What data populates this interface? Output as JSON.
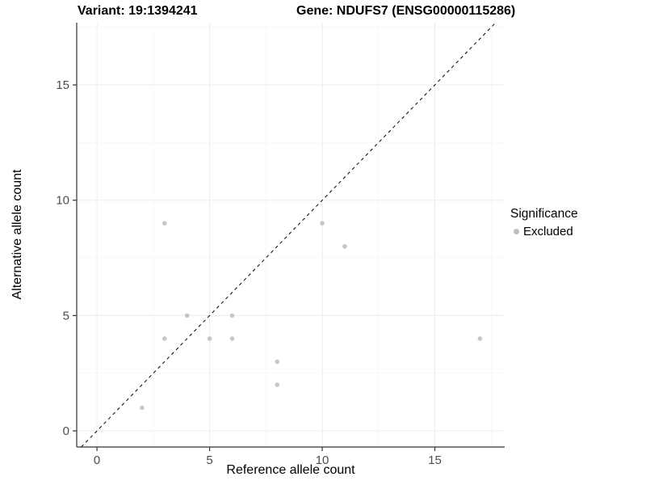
{
  "chart_data": {
    "type": "scatter",
    "title_left": "Variant: 19:1394241",
    "title_right": "Gene: NDUFS7 (ENSG00000115286)",
    "xlabel": "Reference allele count",
    "ylabel": "Alternative allele count",
    "xlim": [
      -0.9,
      18.1
    ],
    "ylim": [
      -0.7,
      17.7
    ],
    "xticks": [
      0,
      5,
      10,
      15
    ],
    "yticks": [
      0,
      5,
      10,
      15
    ],
    "grid": true,
    "identity_line": {
      "style": "dashed",
      "color": "#000000"
    },
    "series": [
      {
        "name": "Excluded",
        "color": "#bdbdbd",
        "points": [
          {
            "x": 2,
            "y": 1
          },
          {
            "x": 3,
            "y": 4
          },
          {
            "x": 3,
            "y": 9
          },
          {
            "x": 4,
            "y": 5
          },
          {
            "x": 5,
            "y": 4
          },
          {
            "x": 6,
            "y": 4
          },
          {
            "x": 6,
            "y": 5
          },
          {
            "x": 8,
            "y": 2
          },
          {
            "x": 8,
            "y": 3
          },
          {
            "x": 10,
            "y": 9
          },
          {
            "x": 11,
            "y": 8
          },
          {
            "x": 17,
            "y": 4
          }
        ]
      }
    ],
    "legend": {
      "title": "Significance",
      "position": "right",
      "entries": [
        {
          "label": "Excluded",
          "color": "#bdbdbd"
        }
      ]
    }
  },
  "colors": {
    "point": "#bdbdbd",
    "grid_major": "#ececec",
    "grid_minor": "#f7f7f7",
    "axis": "#333333",
    "tick_text": "#4d4d4d"
  }
}
